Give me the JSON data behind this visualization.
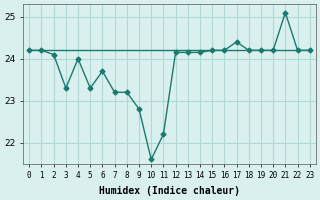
{
  "x": [
    0,
    1,
    2,
    3,
    4,
    5,
    6,
    7,
    8,
    9,
    10,
    11,
    12,
    13,
    14,
    15,
    16,
    17,
    18,
    19,
    20,
    21,
    22,
    23
  ],
  "line1": [
    24.2,
    24.2,
    24.2,
    24.2,
    24.2,
    24.2,
    24.2,
    24.2,
    24.2,
    24.2,
    24.2,
    24.2,
    24.2,
    24.2,
    24.2,
    24.2,
    24.2,
    24.2,
    24.2,
    24.2,
    24.2,
    24.2,
    24.2,
    24.2
  ],
  "line2": [
    24.2,
    24.2,
    24.1,
    23.3,
    24.0,
    23.3,
    23.7,
    23.2,
    23.2,
    22.8,
    21.6,
    22.2,
    24.15,
    24.15,
    24.15,
    24.2,
    24.2,
    24.4,
    24.2,
    24.2,
    24.2,
    25.1,
    24.2,
    24.2
  ],
  "line_color": "#1a7a6e",
  "bg_color": "#d9f0ef",
  "grid_color": "#b0d8d5",
  "xlabel": "Humidex (Indice chaleur)",
  "ylim": [
    21.5,
    25.3
  ],
  "xlim": [
    -0.5,
    23.5
  ],
  "yticks": [
    22,
    23,
    24,
    25
  ],
  "xticks": [
    0,
    1,
    2,
    3,
    4,
    5,
    6,
    7,
    8,
    9,
    10,
    11,
    12,
    13,
    14,
    15,
    16,
    17,
    18,
    19,
    20,
    21,
    22,
    23
  ],
  "xtick_labels": [
    "0",
    "1",
    "2",
    "3",
    "4",
    "5",
    "6",
    "7",
    "8",
    "9",
    "10",
    "11",
    "12",
    "13",
    "14",
    "15",
    "16",
    "17",
    "18",
    "19",
    "20",
    "21",
    "22",
    "23"
  ]
}
